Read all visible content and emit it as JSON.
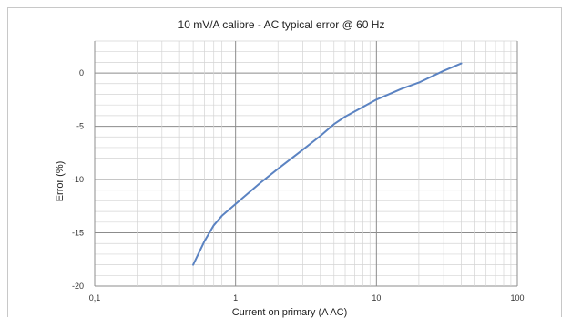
{
  "chart_data": {
    "type": "line",
    "title": "10 mV/A calibre - AC typical error @ 60 Hz",
    "xlabel": "Current on primary (A AC)",
    "ylabel": "Error (%)",
    "x_scale": "log",
    "xlim": [
      0.1,
      100
    ],
    "ylim": [
      -20,
      3
    ],
    "x_ticks": [
      "0,1",
      "1",
      "10",
      "100"
    ],
    "y_ticks": [
      "0",
      "-5",
      "-10",
      "-15",
      "-20"
    ],
    "grid": true,
    "legend": "none",
    "series": [
      {
        "x": [
          0.5,
          0.6,
          0.7,
          0.8,
          1.0,
          1.5,
          2,
          3,
          4,
          5,
          6,
          8,
          10,
          15,
          20,
          30,
          40
        ],
        "y": [
          -18.0,
          -15.8,
          -14.3,
          -13.4,
          -12.3,
          -10.3,
          -9.0,
          -7.2,
          -5.9,
          -4.8,
          -4.1,
          -3.2,
          -2.5,
          -1.5,
          -0.9,
          0.2,
          0.9
        ],
        "color": "#5b83c2"
      }
    ]
  }
}
